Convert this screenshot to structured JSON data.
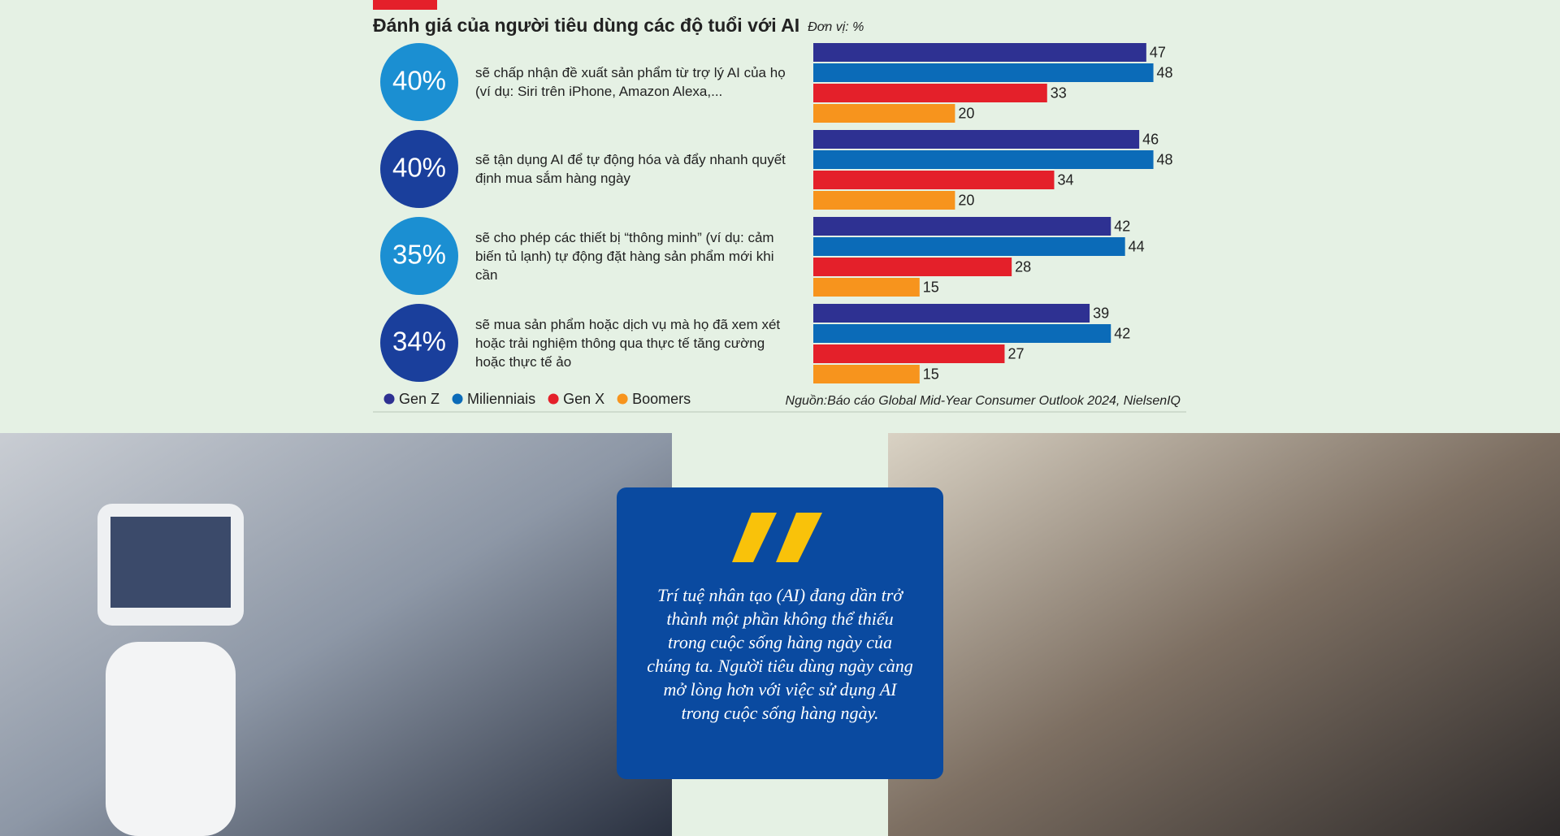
{
  "chart_data": {
    "type": "bar",
    "title": "Đánh giá của người tiêu dùng các độ tuổi với AI",
    "subtitle": "Đơn vị: %",
    "categories": [
      "sẽ chấp nhận đề xuất sản phẩm từ trợ lý AI của họ (ví dụ: Siri trên iPhone, Amazon Alexa,...",
      "sẽ tận dụng AI để tự động hóa và đẩy nhanh quyết định mua sắm hàng ngày",
      "sẽ cho phép các thiết bị “thông minh” (ví dụ: cảm biến tủ lạnh) tự động đặt hàng sản phẩm mới khi cần",
      "sẽ mua sản phẩm hoặc dịch vụ mà họ đã xem xét hoặc trải nghiệm thông qua thực tế tăng cường hoặc thực tế ảo"
    ],
    "highlights": {
      "values": [
        40,
        40,
        35,
        34
      ],
      "value_labels": [
        "40%",
        "40%",
        "35%",
        "34%"
      ],
      "colors": [
        "#1b8fd2",
        "#1a3f9c",
        "#1b8fd2",
        "#1a3f9c"
      ]
    },
    "series": [
      {
        "name": "Gen Z",
        "color": "#2e3192",
        "values": [
          47,
          46,
          42,
          39
        ]
      },
      {
        "name": "Milienniais",
        "color": "#0b6bb8",
        "values": [
          48,
          48,
          44,
          42
        ]
      },
      {
        "name": "Gen X",
        "color": "#e4202a",
        "values": [
          33,
          34,
          28,
          27
        ]
      },
      {
        "name": "Boomers",
        "color": "#f7941d",
        "values": [
          20,
          20,
          15,
          15
        ]
      }
    ],
    "source": "Nguồn:Báo cáo Global Mid-Year Consumer Outlook 2024, NielsenIQ"
  },
  "quote": "Trí tuệ nhân tạo (AI) đang dần trở thành một phần không thể thiếu trong cuộc sống hàng ngày của chúng ta. Người tiêu dùng ngày càng mở lòng hơn với việc sử dụng AI trong cuộc sống hàng ngày."
}
